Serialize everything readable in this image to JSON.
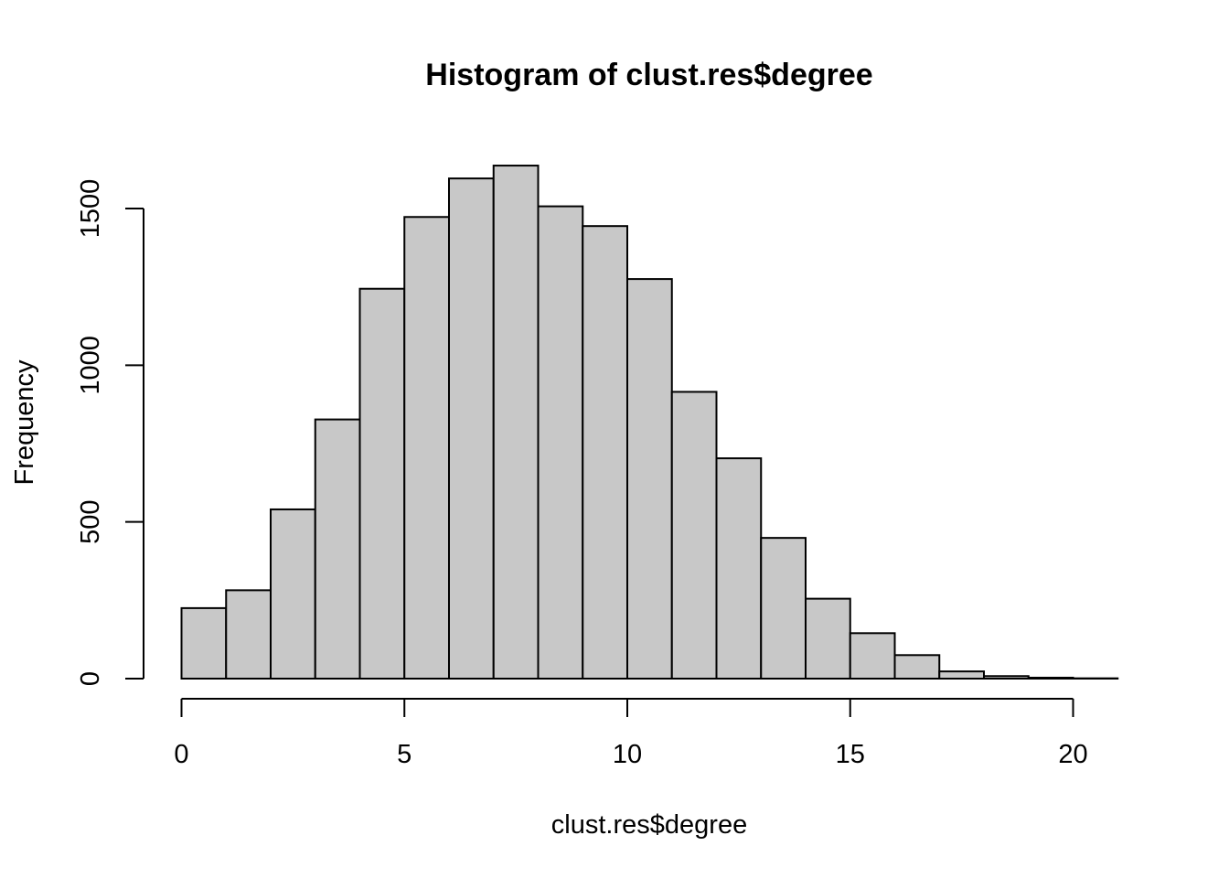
{
  "chart_data": {
    "type": "bar",
    "title": "Histogram of clust.res$degree",
    "xlabel": "clust.res$degree",
    "ylabel": "Frequency",
    "bin_edges": [
      0,
      1,
      2,
      3,
      4,
      5,
      6,
      7,
      8,
      9,
      10,
      11,
      12,
      13,
      14,
      15,
      16,
      17,
      18,
      19,
      20,
      21
    ],
    "values": [
      225,
      282,
      540,
      827,
      1244,
      1473,
      1596,
      1637,
      1507,
      1444,
      1275,
      915,
      703,
      449,
      255,
      145,
      75,
      23,
      8,
      3,
      1
    ],
    "xlim": [
      0,
      21
    ],
    "ylim": [
      0,
      1700
    ],
    "x_ticks": [
      0,
      5,
      10,
      15,
      20
    ],
    "y_ticks": [
      0,
      500,
      1000,
      1500
    ],
    "grid": false,
    "legend": "none"
  }
}
